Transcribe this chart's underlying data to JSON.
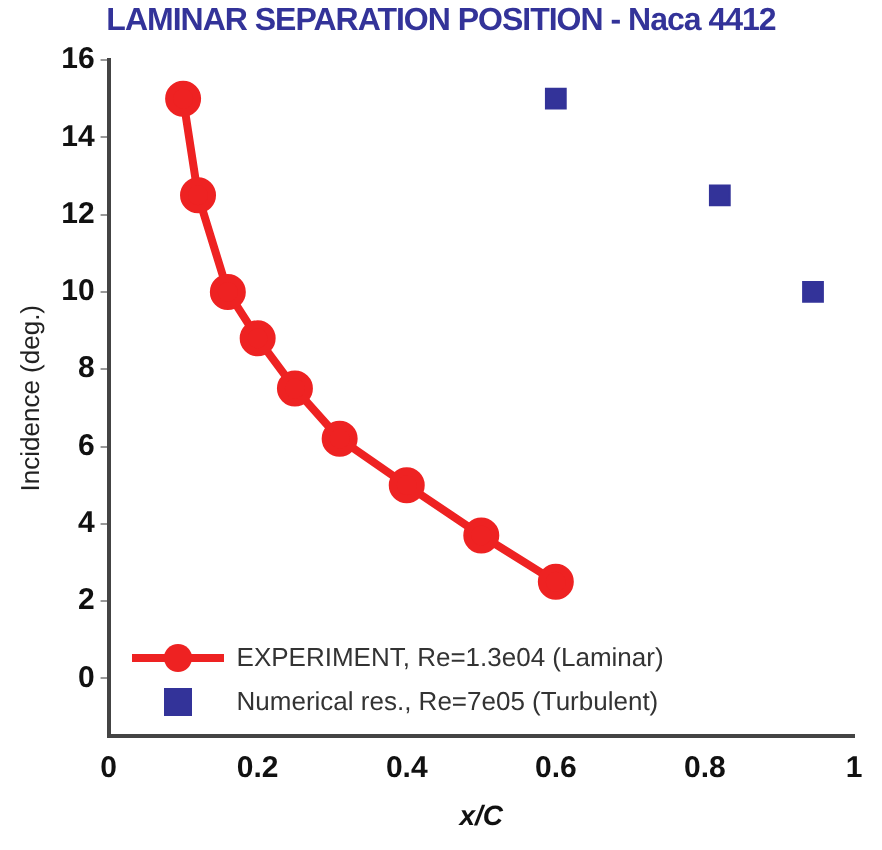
{
  "chart_data": {
    "type": "line",
    "title": "LAMINAR SEPARATION POSITION - Naca 4412",
    "xlabel": "x/C",
    "ylabel": "Incidence (deg.)",
    "xlim": [
      0,
      1
    ],
    "xticks": [
      0,
      0.2,
      0.4,
      0.6,
      0.8,
      1
    ],
    "ylim": [
      -1.5,
      16
    ],
    "yticks": [
      0,
      2,
      4,
      6,
      8,
      10,
      12,
      14,
      16
    ],
    "grid": false,
    "legend": "bottom left",
    "series": [
      {
        "name": "EXPERIMENT, Re=1.3e04 (Laminar)",
        "color": "#ee2222",
        "marker": "circle",
        "line_style": "solid",
        "x": [
          0.1,
          0.12,
          0.16,
          0.2,
          0.25,
          0.31,
          0.4,
          0.5,
          0.6
        ],
        "values": [
          15,
          12.5,
          10,
          8.8,
          7.5,
          6.2,
          5,
          3.7,
          2.5
        ]
      },
      {
        "name": "Numerical res., Re=7e05 (Turbulent)",
        "type": "scatter",
        "color": "#333399",
        "marker": "square",
        "x": [
          0.6,
          0.82,
          0.945
        ],
        "values": [
          15,
          12.5,
          10
        ]
      }
    ]
  }
}
